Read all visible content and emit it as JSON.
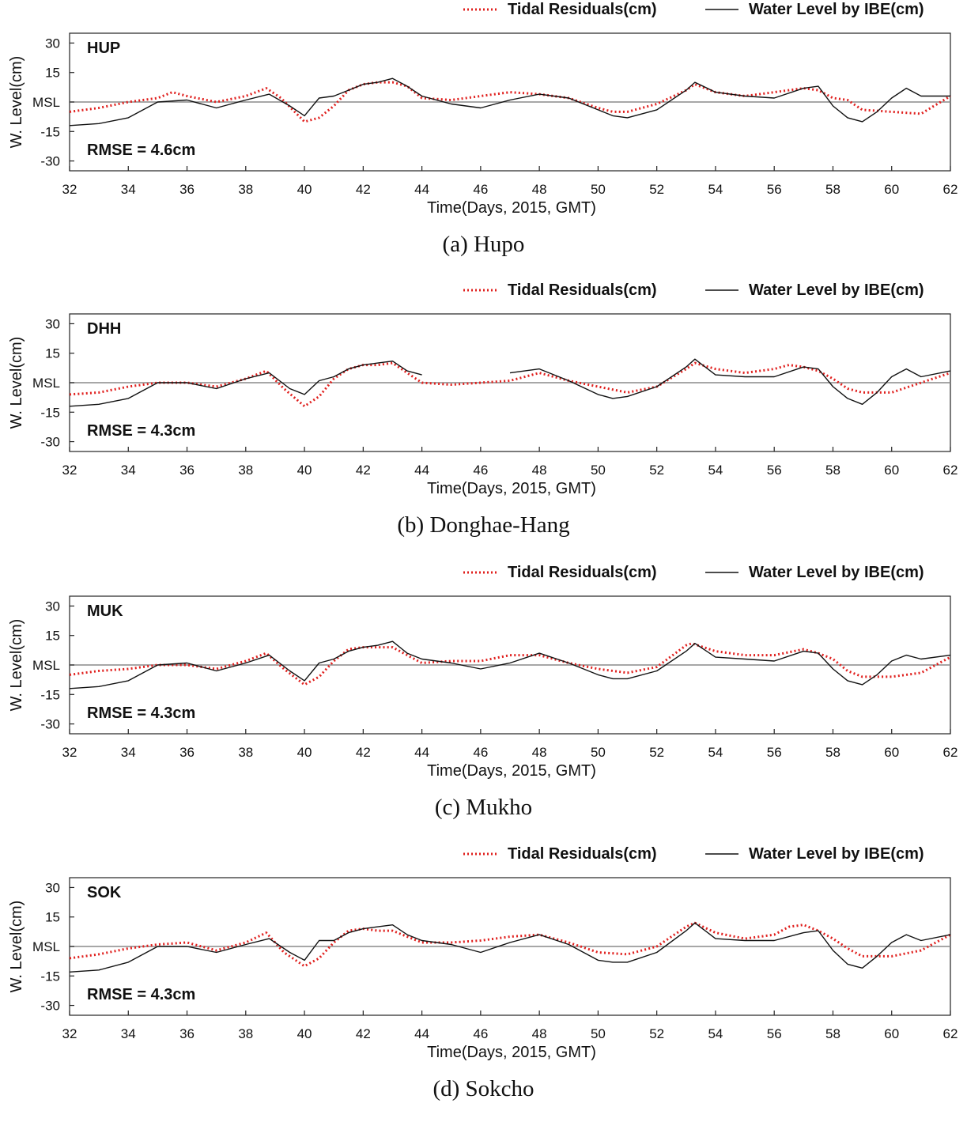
{
  "chart_data": [
    {
      "type": "line",
      "station": "HUP",
      "caption": "(a) Hupo",
      "rmse": "RMSE = 4.6cm",
      "xlabel": "Time(Days, 2015, GMT)",
      "ylabel": "W. Level(cm)",
      "xlim": [
        32,
        62
      ],
      "ylim": [
        -35,
        35
      ],
      "xticks": [
        "32",
        "34",
        "36",
        "38",
        "40",
        "42",
        "44",
        "46",
        "48",
        "50",
        "52",
        "54",
        "56",
        "58",
        "60",
        "62"
      ],
      "yticks": [
        {
          "value": 30,
          "label": "30"
        },
        {
          "value": 15,
          "label": "15"
        },
        {
          "value": 0,
          "label": "MSL"
        },
        {
          "value": -15,
          "label": "-15"
        },
        {
          "value": -30,
          "label": "-30"
        }
      ],
      "msl_line": 0,
      "series": [
        {
          "name": "Tidal Residuals(cm)",
          "style": "dotted",
          "color": "#e0201e",
          "x": [
            32,
            33,
            34,
            35,
            35.5,
            36,
            37,
            38,
            38.7,
            39.2,
            40,
            40.5,
            41,
            41.5,
            42,
            42.5,
            43,
            43.5,
            44,
            45,
            46,
            47,
            48,
            49,
            50,
            50.5,
            51,
            52,
            53,
            53.3,
            54,
            55,
            56,
            57,
            57.5,
            58,
            58.5,
            59,
            60,
            61,
            62
          ],
          "y": [
            -5,
            -3,
            0,
            2,
            5,
            3,
            0,
            3,
            7,
            2,
            -10,
            -8,
            -2,
            6,
            9,
            10,
            10,
            8,
            2,
            1,
            3,
            5,
            4,
            2,
            -3,
            -5,
            -5,
            -1,
            6,
            9,
            5,
            3,
            5,
            7,
            6,
            2,
            1,
            -4,
            -5,
            -6,
            3
          ]
        },
        {
          "name": "Water Level by IBE(cm)",
          "style": "solid",
          "color": "#111111",
          "x": [
            32,
            33,
            34,
            35,
            36,
            37,
            38,
            38.8,
            39.5,
            40,
            40.5,
            41,
            41.5,
            42,
            42.5,
            43,
            43.5,
            44,
            45,
            46,
            47,
            48,
            49,
            50,
            50.5,
            51,
            52,
            53,
            53.3,
            54,
            55,
            56,
            57,
            57.5,
            58,
            58.5,
            59,
            59.5,
            60,
            60.5,
            61,
            62
          ],
          "y": [
            -12,
            -11,
            -8,
            0,
            1,
            -3,
            1,
            4,
            -2,
            -7,
            2,
            3,
            6,
            9,
            10,
            12,
            8,
            3,
            -1,
            -3,
            1,
            4,
            2,
            -4,
            -7,
            -8,
            -4,
            6,
            10,
            5,
            3,
            2,
            7,
            8,
            -2,
            -8,
            -10,
            -5,
            2,
            7,
            3,
            3
          ]
        }
      ]
    },
    {
      "type": "line",
      "station": "DHH",
      "caption": "(b) Donghae-Hang",
      "rmse": "RMSE = 4.3cm",
      "xlabel": "Time(Days, 2015, GMT)",
      "ylabel": "W. Level(cm)",
      "xlim": [
        32,
        62
      ],
      "ylim": [
        -35,
        35
      ],
      "xticks": [
        "32",
        "34",
        "36",
        "38",
        "40",
        "42",
        "44",
        "46",
        "48",
        "50",
        "52",
        "54",
        "56",
        "58",
        "60",
        "62"
      ],
      "yticks": [
        {
          "value": 30,
          "label": "30"
        },
        {
          "value": 15,
          "label": "15"
        },
        {
          "value": 0,
          "label": "MSL"
        },
        {
          "value": -15,
          "label": "-15"
        },
        {
          "value": -30,
          "label": "-30"
        }
      ],
      "msl_line": 0,
      "series": [
        {
          "name": "Tidal Residuals(cm)",
          "style": "dotted",
          "color": "#e0201e",
          "x": [
            32,
            33,
            34,
            35,
            36,
            37,
            38,
            38.7,
            39.3,
            40,
            40.5,
            41,
            41.5,
            42,
            42.5,
            43,
            43.5,
            44,
            45,
            46,
            47,
            48,
            49,
            50,
            51,
            52,
            53,
            53.3,
            54,
            55,
            56,
            56.5,
            57,
            57.5,
            58,
            58.5,
            59,
            60,
            61,
            62
          ],
          "y": [
            -6,
            -5,
            -2,
            0,
            0,
            -2,
            2,
            6,
            -3,
            -12,
            -7,
            2,
            7,
            9,
            9,
            10,
            5,
            0,
            -1,
            0,
            1,
            5,
            1,
            -2,
            -5,
            -2,
            7,
            10,
            7,
            5,
            7,
            9,
            8,
            6,
            2,
            -3,
            -5,
            -5,
            0,
            5
          ]
        },
        {
          "name": "Water Level by IBE(cm)",
          "style": "solid",
          "color": "#111111",
          "x": [
            32,
            33,
            34,
            35,
            36,
            37,
            38,
            38.8,
            39.5,
            40,
            40.5,
            41,
            41.5,
            42,
            42.5,
            43,
            43.5,
            44,
            null,
            47,
            48,
            49,
            50,
            50.5,
            51,
            52,
            53,
            53.3,
            54,
            55,
            56,
            57,
            57.5,
            58,
            58.5,
            59,
            59.5,
            60,
            60.5,
            61,
            62
          ],
          "y": [
            -12,
            -11,
            -8,
            0,
            0,
            -3,
            2,
            5,
            -3,
            -6,
            1,
            3,
            7,
            9,
            10,
            11,
            6,
            4,
            null,
            5,
            7,
            1,
            -6,
            -8,
            -7,
            -2,
            8,
            12,
            4,
            3,
            3,
            8,
            7,
            -2,
            -8,
            -11,
            -5,
            3,
            7,
            3,
            6
          ]
        }
      ]
    },
    {
      "type": "line",
      "station": "MUK",
      "caption": "(c) Mukho",
      "rmse": "RMSE = 4.3cm",
      "xlabel": "Time(Days, 2015, GMT)",
      "ylabel": "W. Level(cm)",
      "xlim": [
        32,
        62
      ],
      "ylim": [
        -35,
        35
      ],
      "xticks": [
        "32",
        "34",
        "36",
        "38",
        "40",
        "42",
        "44",
        "46",
        "48",
        "50",
        "52",
        "54",
        "56",
        "58",
        "60",
        "62"
      ],
      "yticks": [
        {
          "value": 30,
          "label": "30"
        },
        {
          "value": 15,
          "label": "15"
        },
        {
          "value": 0,
          "label": "MSL"
        },
        {
          "value": -15,
          "label": "-15"
        },
        {
          "value": -30,
          "label": "-30"
        }
      ],
      "msl_line": 0,
      "series": [
        {
          "name": "Tidal Residuals(cm)",
          "style": "dotted",
          "color": "#e0201e",
          "x": [
            32,
            33,
            34,
            35,
            36,
            37,
            38,
            38.7,
            39.3,
            40,
            40.5,
            41,
            41.5,
            42,
            42.5,
            43,
            43.5,
            44,
            45,
            46,
            47,
            48,
            49,
            50,
            51,
            52,
            53,
            53.2,
            54,
            55,
            56,
            57,
            57.5,
            58,
            58.5,
            59,
            60,
            61,
            62
          ],
          "y": [
            -5,
            -3,
            -2,
            0,
            0,
            -2,
            2,
            6,
            -2,
            -10,
            -6,
            2,
            8,
            9,
            9,
            9,
            5,
            1,
            2,
            2,
            5,
            5,
            1,
            -2,
            -4,
            -1,
            10,
            11,
            7,
            5,
            5,
            8,
            6,
            3,
            -3,
            -6,
            -6,
            -4,
            4
          ]
        },
        {
          "name": "Water Level by IBE(cm)",
          "style": "solid",
          "color": "#111111",
          "x": [
            32,
            33,
            34,
            35,
            36,
            37,
            38,
            38.8,
            39.5,
            40,
            40.5,
            41,
            41.5,
            42,
            42.5,
            43,
            43.5,
            44,
            45,
            46,
            47,
            48,
            49,
            50,
            50.5,
            51,
            52,
            53,
            53.3,
            54,
            55,
            56,
            57,
            57.5,
            58,
            58.5,
            59,
            59.5,
            60,
            60.5,
            61,
            62
          ],
          "y": [
            -12,
            -11,
            -8,
            0,
            1,
            -3,
            1,
            5,
            -3,
            -8,
            1,
            3,
            7,
            9,
            10,
            12,
            6,
            3,
            1,
            -2,
            1,
            6,
            1,
            -5,
            -7,
            -7,
            -3,
            7,
            11,
            4,
            3,
            2,
            7,
            6,
            -2,
            -8,
            -10,
            -5,
            2,
            5,
            3,
            5
          ]
        }
      ]
    },
    {
      "type": "line",
      "station": "SOK",
      "caption": "(d) Sokcho",
      "rmse": "RMSE = 4.3cm",
      "xlabel": "Time(Days, 2015, GMT)",
      "ylabel": "W. Level(cm)",
      "xlim": [
        32,
        62
      ],
      "ylim": [
        -35,
        35
      ],
      "xticks": [
        "32",
        "34",
        "36",
        "38",
        "40",
        "42",
        "44",
        "46",
        "48",
        "50",
        "52",
        "54",
        "56",
        "58",
        "60",
        "62"
      ],
      "yticks": [
        {
          "value": 30,
          "label": "30"
        },
        {
          "value": 15,
          "label": "15"
        },
        {
          "value": 0,
          "label": "MSL"
        },
        {
          "value": -15,
          "label": "-15"
        },
        {
          "value": -30,
          "label": "-30"
        }
      ],
      "msl_line": 0,
      "series": [
        {
          "name": "Tidal Residuals(cm)",
          "style": "dotted",
          "color": "#e0201e",
          "x": [
            32,
            33,
            34,
            35,
            36,
            37,
            38,
            38.7,
            39.3,
            40,
            40.5,
            41,
            41.5,
            42,
            42.5,
            43,
            43.5,
            44,
            45,
            46,
            47,
            48,
            49,
            50,
            51,
            52,
            53,
            53.3,
            54,
            55,
            56,
            56.5,
            57,
            57.5,
            58,
            58.5,
            59,
            60,
            61,
            62
          ],
          "y": [
            -6,
            -4,
            -1,
            1,
            2,
            -2,
            2,
            7,
            -3,
            -10,
            -6,
            2,
            8,
            9,
            8,
            8,
            5,
            2,
            2,
            3,
            5,
            6,
            2,
            -3,
            -4,
            0,
            10,
            12,
            7,
            4,
            6,
            10,
            11,
            8,
            4,
            -1,
            -5,
            -5,
            -2,
            6
          ]
        },
        {
          "name": "Water Level by IBE(cm)",
          "style": "solid",
          "color": "#111111",
          "x": [
            32,
            33,
            34,
            35,
            36,
            37,
            38,
            38.8,
            39.5,
            40,
            40.5,
            41,
            41.5,
            42,
            42.5,
            43,
            43.5,
            44,
            45,
            46,
            47,
            48,
            49,
            50,
            50.5,
            51,
            52,
            53,
            53.3,
            54,
            55,
            56,
            57,
            57.5,
            58,
            58.5,
            59,
            59.5,
            60,
            60.5,
            61,
            62
          ],
          "y": [
            -13,
            -12,
            -8,
            0,
            0,
            -3,
            1,
            4,
            -3,
            -7,
            3,
            3,
            7,
            9,
            10,
            11,
            6,
            3,
            1,
            -3,
            2,
            6,
            1,
            -7,
            -8,
            -8,
            -3,
            8,
            12,
            4,
            3,
            3,
            7,
            8,
            -2,
            -9,
            -11,
            -5,
            2,
            6,
            3,
            6
          ]
        }
      ]
    }
  ]
}
